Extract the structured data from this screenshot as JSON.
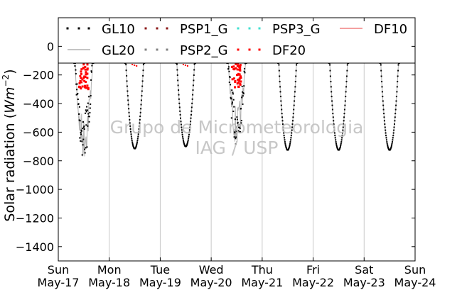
{
  "chart_data": {
    "type": "scatter",
    "title": "",
    "xlabel": "",
    "ylabel": "Solar radiation (W m^-2)",
    "ylabel_prefix": "Solar radiation (",
    "ylabel_units": "Wm",
    "ylabel_exponent": "−2",
    "ylabel_suffix": ")",
    "ylim": [
      -1500,
      200
    ],
    "yticks": [
      0,
      -200,
      -400,
      -600,
      -800,
      -1000,
      -1200,
      -1400
    ],
    "ytick_labels": [
      "0",
      "−200",
      "−400",
      "−600",
      "−800",
      "−1000",
      "−1200",
      "−1400"
    ],
    "xlim": [
      "2015-05-17",
      "2015-05-24"
    ],
    "xticks": [
      {
        "day": "Sun",
        "date": "May-17"
      },
      {
        "day": "Mon",
        "date": "May-18"
      },
      {
        "day": "Tue",
        "date": "May-19"
      },
      {
        "day": "Wed",
        "date": "May-20"
      },
      {
        "day": "Thu",
        "date": "May-21"
      },
      {
        "day": "Fri",
        "date": "May-22"
      },
      {
        "day": "Sat",
        "date": "May-23"
      },
      {
        "day": "Sun",
        "date": "May-24"
      }
    ],
    "grid": "vertical",
    "legend_position": "top",
    "legend": [
      {
        "name": "GL10",
        "style": "dots",
        "color": "#000000"
      },
      {
        "name": "PSP1_G",
        "style": "dots",
        "color": "#8b1a1a"
      },
      {
        "name": "PSP3_G",
        "style": "dots",
        "color": "#40e0d0"
      },
      {
        "name": "DF10",
        "style": "line",
        "color": "#f08080"
      },
      {
        "name": "GL20",
        "style": "line",
        "color": "#b0b0b0"
      },
      {
        "name": "PSP2_G",
        "style": "dots",
        "color": "#808080"
      },
      {
        "name": "DF20",
        "style": "dots",
        "color": "#ff0000"
      }
    ],
    "daily_minimum_approx": [
      {
        "day": "May-17",
        "value": -800
      },
      {
        "day": "May-18",
        "value": -715
      },
      {
        "day": "May-19",
        "value": -700
      },
      {
        "day": "May-20",
        "value": -700
      },
      {
        "day": "May-21",
        "value": -725
      },
      {
        "day": "May-22",
        "value": -725
      },
      {
        "day": "May-23",
        "value": -725
      }
    ],
    "watermark": [
      "Grupo de Micrometeorologia",
      "IAG / USP"
    ]
  }
}
